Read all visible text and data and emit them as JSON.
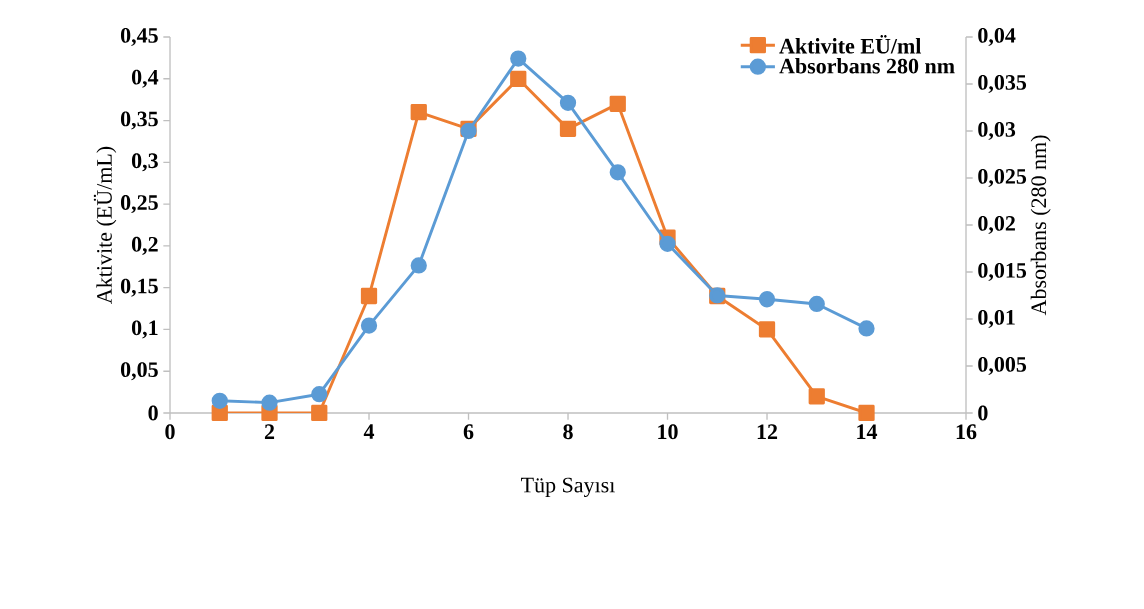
{
  "chart_data": {
    "type": "line",
    "xlabel": "Tüp Sayısı",
    "ylabel": "Aktivite (EÜ/mL)",
    "y2label": "Absorbans (280 nm)",
    "x": [
      1,
      2,
      3,
      4,
      5,
      6,
      7,
      8,
      9,
      10,
      11,
      12,
      13,
      14
    ],
    "series": [
      {
        "name": "Aktivite EÜ/ml",
        "color": "#ed7d31",
        "marker": "square",
        "values": [
          0,
          0,
          0,
          0.14,
          0.36,
          0.34,
          0.4,
          0.34,
          0.37,
          0.21,
          0.14,
          0.1,
          0.02,
          0
        ]
      },
      {
        "name": "Absorbans 280 nm",
        "color": "#5b9bd5",
        "marker": "circle",
        "axis": "y2",
        "values": [
          0.0013,
          0.0011,
          0.002,
          0.0093,
          0.0157,
          0.03,
          0.0377,
          0.033,
          0.0256,
          0.018,
          0.0125,
          0.0121,
          0.0116,
          0.009
        ]
      }
    ],
    "xlim": [
      0,
      16
    ],
    "xticks": [
      0,
      2,
      4,
      6,
      8,
      10,
      12,
      14,
      16
    ],
    "ylim": [
      0,
      0.45
    ],
    "yticks": [
      0,
      {
        "value": 0.05,
        "label": "0,05"
      },
      {
        "value": 0.1,
        "label": "0,1"
      },
      {
        "value": 0.15,
        "label": "0,15"
      },
      {
        "value": 0.2,
        "label": "0,2"
      },
      {
        "value": 0.25,
        "label": "0,25"
      },
      {
        "value": 0.3,
        "label": "0,3"
      },
      {
        "value": 0.35,
        "label": "0,35"
      },
      {
        "value": 0.4,
        "label": "0,4"
      },
      {
        "value": 0.45,
        "label": "0,45"
      }
    ],
    "y2lim": [
      0,
      0.04
    ],
    "y2ticks": [
      0,
      {
        "value": 0.005,
        "label": "0,005"
      },
      {
        "value": 0.01,
        "label": "0,01"
      },
      {
        "value": 0.015,
        "label": "0,015"
      },
      {
        "value": 0.02,
        "label": "0,02"
      },
      {
        "value": 0.025,
        "label": "0,025"
      },
      {
        "value": 0.03,
        "label": "0,03"
      },
      {
        "value": 0.035,
        "label": "0,035"
      },
      {
        "value": 0.04,
        "label": "0,04"
      }
    ],
    "grid": false,
    "legend": "top right",
    "line_style": "solid"
  }
}
